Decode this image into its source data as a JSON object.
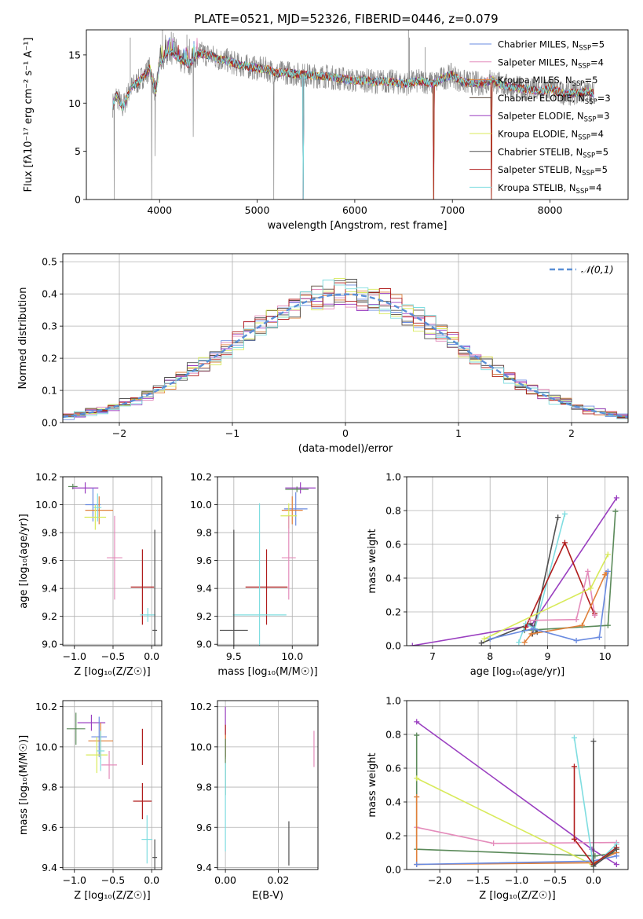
{
  "figure_title": "PLATE=0521, MJD=52326, FIBERID=0446, z=0.079",
  "palette": {
    "model_colors": [
      "#6a8be0",
      "#e48cbb",
      "#e0803a",
      "#5b4a3e",
      "#9a3fc0",
      "#d8ea5a",
      "#505050",
      "#b01c1c",
      "#7fdde0"
    ],
    "extra_green": "#5b8a5a",
    "normal_line": "#5a8fd6",
    "spectrum_gray": "#8a8a8a"
  },
  "chart_data": [
    {
      "id": "spectrum",
      "type": "line",
      "title": "PLATE=0521, MJD=52326, FIBERID=0446, z=0.079",
      "xlabel": "wavelength [Angstrom, rest frame]",
      "ylabel": "Flux [fλ10⁻¹⁷ erg cm⁻² s⁻¹ A⁻¹]",
      "xlim": [
        3250,
        8800
      ],
      "ylim": [
        0,
        17.6
      ],
      "xticks": [
        4000,
        5000,
        6000,
        7000,
        8000
      ],
      "yticks": [
        0,
        5,
        10,
        15
      ],
      "grid": false,
      "legend_position": "top-right",
      "legend": [
        {
          "name": "Chabrier MILES, N",
          "sub": "SSP",
          "suffix": "=5"
        },
        {
          "name": "Salpeter MILES, N",
          "sub": "SSP",
          "suffix": "=4"
        },
        {
          "name": "Kroupa MILES, N",
          "sub": "SSP",
          "suffix": "=5"
        },
        {
          "name": "Chabrier ELODIE, N",
          "sub": "SSP",
          "suffix": "=3"
        },
        {
          "name": "Salpeter ELODIE, N",
          "sub": "SSP",
          "suffix": "=3"
        },
        {
          "name": "Kroupa ELODIE, N",
          "sub": "SSP",
          "suffix": "=4"
        },
        {
          "name": "Chabrier STELIB, N",
          "sub": "SSP",
          "suffix": "=5"
        },
        {
          "name": "Salpeter STELIB, N",
          "sub": "SSP",
          "suffix": "=5"
        },
        {
          "name": "Kroupa STELIB, N",
          "sub": "SSP",
          "suffix": "=4"
        }
      ],
      "continuum": [
        [
          3520,
          9.8
        ],
        [
          3560,
          10.8
        ],
        [
          3620,
          9.5
        ],
        [
          3700,
          11.5
        ],
        [
          3800,
          12.4
        ],
        [
          3900,
          13.6
        ],
        [
          3960,
          11.0
        ],
        [
          4000,
          14.2
        ],
        [
          4100,
          15.5
        ],
        [
          4200,
          14.6
        ],
        [
          4300,
          14.0
        ],
        [
          4400,
          15.2
        ],
        [
          4500,
          15.0
        ],
        [
          4600,
          14.6
        ],
        [
          4700,
          14.4
        ],
        [
          4800,
          14.0
        ],
        [
          4900,
          13.8
        ],
        [
          5000,
          13.6
        ],
        [
          5100,
          13.5
        ],
        [
          5200,
          13.1
        ],
        [
          5300,
          13.2
        ],
        [
          5400,
          13.0
        ],
        [
          5500,
          12.9
        ],
        [
          5600,
          12.8
        ],
        [
          5700,
          12.8
        ],
        [
          5800,
          12.6
        ],
        [
          5900,
          12.5
        ],
        [
          6000,
          12.3
        ],
        [
          6100,
          12.4
        ],
        [
          6200,
          12.2
        ],
        [
          6300,
          12.3
        ],
        [
          6400,
          12.2
        ],
        [
          6500,
          12.0
        ],
        [
          6600,
          12.2
        ],
        [
          6700,
          12.3
        ],
        [
          6800,
          12.0
        ],
        [
          6900,
          12.6
        ],
        [
          7000,
          12.9
        ],
        [
          7100,
          12.2
        ],
        [
          7200,
          12.1
        ],
        [
          7300,
          12.0
        ],
        [
          7400,
          12.4
        ],
        [
          7500,
          11.9
        ],
        [
          7600,
          11.7
        ],
        [
          7700,
          11.5
        ],
        [
          7800,
          11.4
        ],
        [
          7900,
          11.2
        ],
        [
          8000,
          11.5
        ],
        [
          8100,
          11.1
        ],
        [
          8200,
          11.0
        ],
        [
          8300,
          11.1
        ],
        [
          8400,
          11.2
        ],
        [
          8450,
          11.0
        ]
      ],
      "dips": [
        [
          3535,
          0
        ],
        [
          3920,
          0
        ],
        [
          3955,
          4.5
        ],
        [
          4345,
          6.5
        ],
        [
          5170,
          0
        ],
        [
          5470,
          0
        ],
        [
          6810,
          0
        ],
        [
          7400,
          0
        ]
      ],
      "spikes": [
        [
          6550,
          17.6
        ],
        [
          6560,
          16.8
        ],
        [
          6720,
          15.8
        ],
        [
          4030,
          17.6
        ],
        [
          4120,
          17.4
        ],
        [
          4280,
          17.1
        ],
        [
          3700,
          16.8
        ]
      ]
    },
    {
      "id": "residuals",
      "type": "histogram",
      "xlabel": "(data-model)/error",
      "ylabel": "Normed distribution",
      "xlim": [
        -2.5,
        2.5
      ],
      "ylim": [
        0,
        0.525
      ],
      "xticks": [
        -2,
        -1,
        0,
        1,
        2
      ],
      "yticks": [
        0.0,
        0.1,
        0.2,
        0.3,
        0.4,
        0.5
      ],
      "grid": true,
      "legend_position": "top-right",
      "legend": [
        "𝒩(0,1)"
      ],
      "bin_width": 0.1,
      "bin_start": -2.5
    },
    {
      "id": "age-vs-Z",
      "type": "errorbar",
      "xlabel": "Z [log₁₀(Z/Z☉)]",
      "ylabel": "age  [log₁₀(age/yr)]",
      "xlim": [
        -1.15,
        0.13
      ],
      "ylim": [
        8.99,
        10.2
      ],
      "xticks": [
        -1.0,
        -0.5,
        0.0
      ],
      "yticks": [
        9.0,
        9.2,
        9.4,
        9.6,
        9.8,
        10.0,
        10.2
      ],
      "grid": true,
      "points": [
        {
          "c": "#5b8a5a",
          "x": -1.02,
          "xe": 0.06,
          "y": 10.13,
          "ye": 0.02
        },
        {
          "c": "#9a3fc0",
          "x": -0.86,
          "xe": 0.17,
          "y": 10.12,
          "ye": 0.04
        },
        {
          "c": "#6a8be0",
          "x": -0.76,
          "xe": 0.1,
          "y": 10.0,
          "ye": 0.12
        },
        {
          "c": "#e0803a",
          "x": -0.68,
          "xe": 0.18,
          "y": 9.96,
          "ye": 0.1
        },
        {
          "c": "#d8ea5a",
          "x": -0.73,
          "xe": 0.14,
          "y": 9.91,
          "ye": 0.09
        },
        {
          "c": "#7fdde0",
          "x": -0.7,
          "xe": 0.05,
          "y": 9.98,
          "ye": 0.1
        },
        {
          "c": "#e48cbb",
          "x": -0.48,
          "xe": 0.1,
          "y": 9.62,
          "ye": 0.3
        },
        {
          "c": "#b01c1c",
          "x": -0.12,
          "xe": 0.15,
          "y": 9.41,
          "ye": 0.27
        },
        {
          "c": "#7fdde0",
          "x": -0.05,
          "xe": 0.1,
          "y": 9.21,
          "ye": 0.05
        },
        {
          "c": "#505050",
          "x": 0.04,
          "xe": 0.03,
          "y": 9.1,
          "ye": 0.72
        }
      ]
    },
    {
      "id": "age-vs-mass",
      "type": "errorbar",
      "xlabel": "mass [log₁₀(M/M☉)]",
      "ylabel": "",
      "xlim": [
        9.36,
        10.22
      ],
      "ylim": [
        8.99,
        10.2
      ],
      "xticks": [
        9.5,
        10.0
      ],
      "yticks": [
        9.0,
        9.2,
        9.4,
        9.6,
        9.8,
        10.0,
        10.2
      ],
      "grid": true,
      "points": [
        {
          "c": "#9a3fc0",
          "x": 10.07,
          "xe": 0.13,
          "y": 10.12,
          "ye": 0.04
        },
        {
          "c": "#5b8a5a",
          "x": 10.04,
          "xe": 0.1,
          "y": 10.11,
          "ye": 0.02
        },
        {
          "c": "#6a8be0",
          "x": 10.03,
          "xe": 0.1,
          "y": 9.97,
          "ye": 0.12
        },
        {
          "c": "#e0803a",
          "x": 10.0,
          "xe": 0.09,
          "y": 9.96,
          "ye": 0.1
        },
        {
          "c": "#d8ea5a",
          "x": 9.97,
          "xe": 0.07,
          "y": 9.92,
          "ye": 0.09
        },
        {
          "c": "#e48cbb",
          "x": 9.97,
          "xe": 0.06,
          "y": 9.62,
          "ye": 0.3
        },
        {
          "c": "#b01c1c",
          "x": 9.78,
          "xe": 0.18,
          "y": 9.41,
          "ye": 0.27
        },
        {
          "c": "#7fdde0",
          "x": 9.72,
          "xe": 0.23,
          "y": 9.21,
          "ye": 0.8
        },
        {
          "c": "#505050",
          "x": 9.5,
          "xe": 0.12,
          "y": 9.1,
          "ye": 0.72
        }
      ]
    },
    {
      "id": "weight-vs-age",
      "type": "line",
      "xlabel": "age  [log₁₀(age/yr)]",
      "ylabel": "mass weight",
      "xlim": [
        6.55,
        10.4
      ],
      "ylim": [
        0,
        1.0
      ],
      "xticks": [
        7,
        8,
        9,
        10
      ],
      "yticks": [
        0.0,
        0.2,
        0.4,
        0.6,
        0.8,
        1.0
      ],
      "grid": true,
      "series": [
        {
          "c": "#9a3fc0",
          "points": [
            [
              6.65,
              0.0
            ],
            [
              8.72,
              0.12
            ],
            [
              10.2,
              0.875
            ]
          ]
        },
        {
          "c": "#505050",
          "points": [
            [
              7.85,
              0.015
            ],
            [
              8.7,
              0.13
            ],
            [
              8.82,
              0.08
            ],
            [
              8.74,
              0.07
            ],
            [
              9.18,
              0.76
            ]
          ]
        },
        {
          "c": "#7fdde0",
          "points": [
            [
              8.5,
              0.02
            ],
            [
              8.62,
              0.13
            ],
            [
              8.78,
              0.1
            ],
            [
              9.3,
              0.78
            ]
          ]
        },
        {
          "c": "#b01c1c",
          "points": [
            [
              8.62,
              0.11
            ],
            [
              9.3,
              0.61
            ],
            [
              9.82,
              0.18
            ],
            [
              9.82,
              0.19
            ]
          ]
        },
        {
          "c": "#e48cbb",
          "points": [
            [
              8.7,
              0.15
            ],
            [
              9.5,
              0.155
            ],
            [
              9.7,
              0.44
            ],
            [
              9.82,
              0.18
            ]
          ]
        },
        {
          "c": "#5b8a5a",
          "points": [
            [
              8.6,
              0.09
            ],
            [
              10.05,
              0.12
            ],
            [
              10.18,
              0.795
            ]
          ]
        },
        {
          "c": "#d8ea5a",
          "points": [
            [
              7.9,
              0.04
            ],
            [
              9.75,
              0.34
            ],
            [
              10.05,
              0.54
            ]
          ]
        },
        {
          "c": "#e0803a",
          "points": [
            [
              8.6,
              0.02
            ],
            [
              8.72,
              0.07
            ],
            [
              9.6,
              0.12
            ],
            [
              10.0,
              0.42
            ],
            [
              10.02,
              0.43
            ]
          ]
        },
        {
          "c": "#6a8be0",
          "points": [
            [
              8.0,
              0.04
            ],
            [
              8.75,
              0.1
            ],
            [
              9.5,
              0.03
            ],
            [
              9.9,
              0.05
            ],
            [
              10.05,
              0.44
            ]
          ]
        }
      ]
    },
    {
      "id": "mass-vs-Z",
      "type": "errorbar",
      "xlabel": "Z [log₁₀(Z/Z☉)]",
      "ylabel": "mass [log₁₀(M/M☉)]",
      "xlim": [
        -1.15,
        0.13
      ],
      "ylim": [
        9.39,
        10.23
      ],
      "xticks": [
        -1.0,
        -0.5,
        0.0
      ],
      "yticks": [
        9.4,
        9.6,
        9.8,
        10.0,
        10.2
      ],
      "grid": true,
      "points": [
        {
          "c": "#5b8a5a",
          "x": -0.98,
          "xe": 0.12,
          "y": 10.09,
          "ye": 0.08
        },
        {
          "c": "#9a3fc0",
          "x": -0.78,
          "xe": 0.18,
          "y": 10.12,
          "ye": 0.04
        },
        {
          "c": "#6a8be0",
          "x": -0.68,
          "xe": 0.1,
          "y": 10.05,
          "ye": 0.1
        },
        {
          "c": "#e0803a",
          "x": -0.66,
          "xe": 0.16,
          "y": 10.03,
          "ye": 0.09
        },
        {
          "c": "#d8ea5a",
          "x": -0.71,
          "xe": 0.14,
          "y": 9.96,
          "ye": 0.09
        },
        {
          "c": "#7fdde0",
          "x": -0.66,
          "xe": 0.05,
          "y": 9.98,
          "ye": 0.1
        },
        {
          "c": "#e48cbb",
          "x": -0.55,
          "xe": 0.1,
          "y": 9.91,
          "ye": 0.07
        },
        {
          "c": "#b01c1c",
          "x": -0.12,
          "xe": 0.12,
          "y": 9.73,
          "ye": 0.09
        },
        {
          "c": "#b01c1c",
          "x": -0.12,
          "xe": 0.0,
          "y": 10.0,
          "ye": 0.09
        },
        {
          "c": "#7fdde0",
          "x": -0.06,
          "xe": 0.07,
          "y": 9.54,
          "ye": 0.12
        },
        {
          "c": "#505050",
          "x": 0.04,
          "xe": 0.03,
          "y": 9.45,
          "ye": 0.09
        }
      ]
    },
    {
      "id": "mass-vs-ebv",
      "type": "errorbar",
      "xlabel": "E(B-V)",
      "ylabel": "",
      "xlim": [
        -0.003,
        0.035
      ],
      "ylim": [
        9.39,
        10.23
      ],
      "xticks": [
        0.0,
        0.02
      ],
      "tick_labels": [
        "0.00",
        "0.02"
      ],
      "yticks": [
        9.4,
        9.6,
        9.8,
        10.0,
        10.2
      ],
      "grid": true,
      "points": [
        {
          "c": "#9a3fc0",
          "x": 0.0,
          "xe": 0.0,
          "y": 10.12,
          "ye": 0.08
        },
        {
          "c": "#b01c1c",
          "x": 0.0,
          "xe": 0.0,
          "y": 10.03,
          "ye": 0.08
        },
        {
          "c": "#e0803a",
          "x": 0.0,
          "xe": 0.0,
          "y": 10.0,
          "ye": 0.06
        },
        {
          "c": "#5b8a5a",
          "x": 0.0,
          "xe": 0.0,
          "y": 9.9,
          "ye": 0.14
        },
        {
          "c": "#7fdde0",
          "x": 0.0,
          "xe": 0.0,
          "y": 9.7,
          "ye": 0.22
        },
        {
          "c": "#505050",
          "x": 0.024,
          "xe": 0.0,
          "y": 9.52,
          "ye": 0.11
        },
        {
          "c": "#e48cbb",
          "x": 0.0335,
          "xe": 0.0,
          "y": 9.99,
          "ye": 0.09
        }
      ]
    },
    {
      "id": "weight-vs-Z",
      "type": "line",
      "xlabel": "Z [log₁₀(Z/Z☉)]",
      "ylabel": "mass weight",
      "xlim": [
        -2.43,
        0.45
      ],
      "ylim": [
        0,
        1.0
      ],
      "xticks": [
        -2.0,
        -1.5,
        -1.0,
        -0.5,
        0.0
      ],
      "yticks": [
        0.0,
        0.2,
        0.4,
        0.6,
        0.8,
        1.0
      ],
      "grid": true,
      "series": [
        {
          "c": "#9a3fc0",
          "points": [
            [
              -2.3,
              0.875
            ],
            [
              -0.02,
              0.12
            ],
            [
              0.3,
              0.03
            ]
          ]
        },
        {
          "c": "#5b8a5a",
          "points": [
            [
              -2.3,
              0.795
            ],
            [
              -2.3,
              0.12
            ],
            [
              0.02,
              0.08
            ],
            [
              0.3,
              0.1
            ]
          ]
        },
        {
          "c": "#d8ea5a",
          "points": [
            [
              -2.3,
              0.54
            ],
            [
              -0.02,
              0.03
            ],
            [
              0.3,
              0.12
            ]
          ]
        },
        {
          "c": "#e48cbb",
          "points": [
            [
              -2.3,
              0.25
            ],
            [
              -1.3,
              0.155
            ],
            [
              0.3,
              0.16
            ]
          ]
        },
        {
          "c": "#e0803a",
          "points": [
            [
              -2.3,
              0.43
            ],
            [
              -2.3,
              0.03
            ],
            [
              0.0,
              0.04
            ],
            [
              0.3,
              0.1
            ]
          ]
        },
        {
          "c": "#6a8be0",
          "points": [
            [
              -2.3,
              0.03
            ],
            [
              -0.02,
              0.05
            ],
            [
              0.3,
              0.08
            ]
          ]
        },
        {
          "c": "#7fdde0",
          "points": [
            [
              -0.25,
              0.78
            ],
            [
              0.0,
              0.02
            ],
            [
              0.3,
              0.15
            ]
          ]
        },
        {
          "c": "#b01c1c",
          "points": [
            [
              -0.25,
              0.61
            ],
            [
              -0.25,
              0.18
            ],
            [
              0.0,
              0.03
            ],
            [
              0.3,
              0.13
            ]
          ]
        },
        {
          "c": "#505050",
          "points": [
            [
              0.0,
              0.76
            ],
            [
              0.0,
              0.02
            ],
            [
              0.3,
              0.12
            ]
          ]
        }
      ]
    }
  ]
}
